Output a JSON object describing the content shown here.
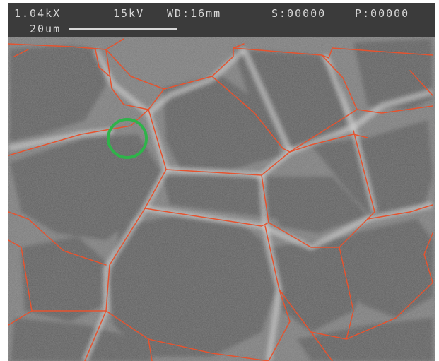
{
  "info_bar": {
    "magnification": "1.04kX",
    "voltage": "15kV",
    "working_distance": "WD:16mm",
    "s_counter": "S:00000",
    "p_counter": "P:00000",
    "scale_label": "20um"
  },
  "colors": {
    "info_bar_background": "#3b3b3b",
    "info_text": "#d8d8d8",
    "micrograph_base": "#6b6b6b",
    "grain_boundary": "#e5532f",
    "highlight_circle": "#2fb34a"
  }
}
